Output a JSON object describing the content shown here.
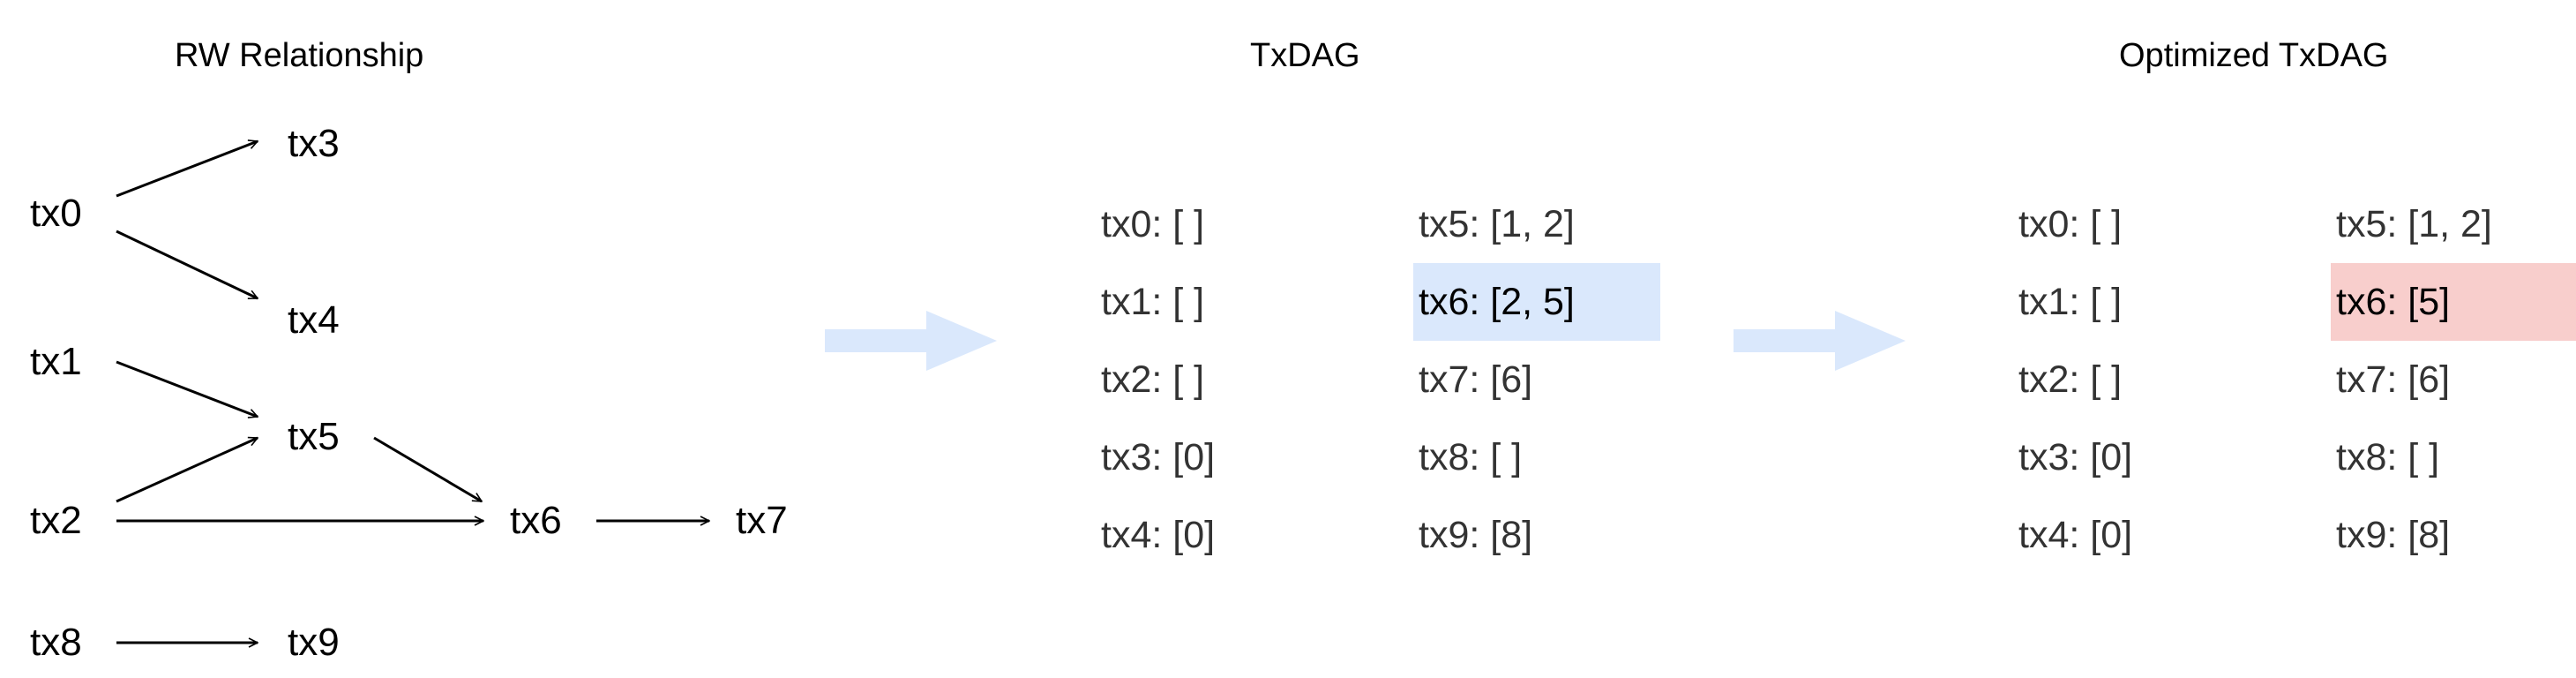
{
  "titles": {
    "rw": "RW Relationship",
    "txdag": "TxDAG",
    "optimized": "Optimized TxDAG"
  },
  "rw": {
    "nodes": [
      "tx0",
      "tx1",
      "tx2",
      "tx3",
      "tx4",
      "tx5",
      "tx6",
      "tx7",
      "tx8",
      "tx9"
    ],
    "edges": [
      [
        "tx0",
        "tx3"
      ],
      [
        "tx0",
        "tx4"
      ],
      [
        "tx1",
        "tx5"
      ],
      [
        "tx2",
        "tx5"
      ],
      [
        "tx2",
        "tx6"
      ],
      [
        "tx5",
        "tx6"
      ],
      [
        "tx6",
        "tx7"
      ],
      [
        "tx8",
        "tx9"
      ]
    ]
  },
  "txdag": {
    "left": [
      "tx0: [ ]",
      "tx1: [ ]",
      "tx2: [ ]",
      "tx3: [0]",
      "tx4: [0]"
    ],
    "right": [
      "tx5: [1, 2]",
      "tx6: [2, 5]",
      "tx7: [6]",
      "tx8: [ ]",
      "tx9: [8]"
    ],
    "highlight_index": 1,
    "highlight_color": "#dae8fc"
  },
  "optimized": {
    "left": [
      "tx0: [ ]",
      "tx1: [ ]",
      "tx2: [ ]",
      "tx3: [0]",
      "tx4: [0]"
    ],
    "right": [
      "tx5: [1, 2]",
      "tx6: [5]",
      "tx7: [6]",
      "tx8: [ ]",
      "tx9: [8]"
    ],
    "highlight_index": 1,
    "highlight_color": "#f8cecc"
  },
  "arrow_color": "#dae8fc"
}
